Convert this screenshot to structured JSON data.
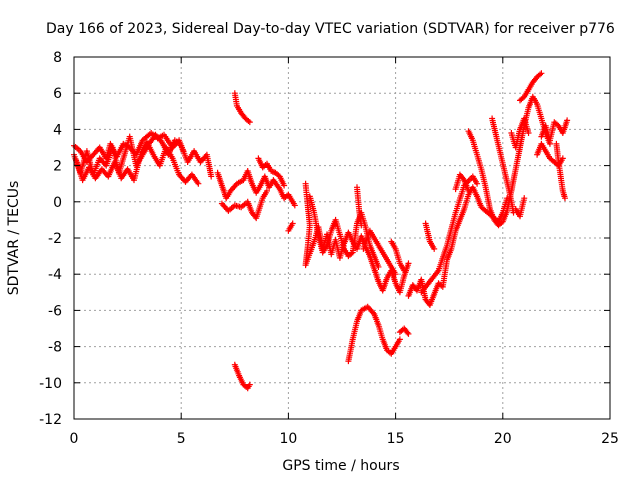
{
  "chart_data": {
    "type": "scatter",
    "title": "Day 166 of 2023, Sidereal Day-to-day VTEC variation (SDTVAR) for receiver p776",
    "xlabel": "GPS time / hours",
    "ylabel": "SDTVAR / TECUs",
    "xlim": [
      0,
      25
    ],
    "ylim": [
      -12,
      8
    ],
    "xticks": [
      0,
      5,
      10,
      15,
      20,
      25
    ],
    "yticks": [
      -12,
      -10,
      -8,
      -6,
      -4,
      -2,
      0,
      2,
      4,
      6,
      8
    ],
    "grid": true,
    "marker": "+",
    "color": "#ff0000",
    "series": [
      {
        "name": "SDTVAR",
        "segments": [
          [
            [
              0.0,
              2.6
            ],
            [
              0.3,
              1.6
            ],
            [
              0.6,
              2.8
            ],
            [
              0.9,
              1.5
            ],
            [
              1.2,
              2.4
            ],
            [
              1.5,
              2.0
            ],
            [
              1.8,
              3.0
            ],
            [
              2.1,
              1.6
            ],
            [
              2.4,
              2.8
            ],
            [
              2.6,
              3.6
            ],
            [
              2.9,
              2.0
            ],
            [
              3.2,
              2.6
            ],
            [
              3.5,
              3.2
            ],
            [
              3.8,
              3.7
            ],
            [
              4.1,
              3.3
            ],
            [
              4.4,
              2.6
            ],
            [
              4.7,
              3.4
            ],
            [
              5.0,
              3.1
            ],
            [
              5.3,
              2.2
            ],
            [
              5.6,
              2.8
            ],
            [
              5.9,
              2.2
            ],
            [
              6.2,
              2.6
            ],
            [
              6.4,
              1.4
            ]
          ],
          [
            [
              0.1,
              2.3
            ],
            [
              0.4,
              1.2
            ],
            [
              0.7,
              1.9
            ],
            [
              1.0,
              1.3
            ],
            [
              1.3,
              1.8
            ],
            [
              1.6,
              1.4
            ],
            [
              1.9,
              2.2
            ],
            [
              2.2,
              1.3
            ],
            [
              2.5,
              1.8
            ],
            [
              2.8,
              1.2
            ],
            [
              3.1,
              2.6
            ],
            [
              3.4,
              3.3
            ],
            [
              3.7,
              2.6
            ],
            [
              4.0,
              2.0
            ],
            [
              4.3,
              3.0
            ],
            [
              4.6,
              2.4
            ],
            [
              4.9,
              1.5
            ],
            [
              5.2,
              1.1
            ],
            [
              5.5,
              1.5
            ],
            [
              5.8,
              1.0
            ]
          ],
          [
            [
              0.0,
              3.1
            ],
            [
              0.3,
              2.8
            ],
            [
              0.6,
              2.2
            ],
            [
              0.9,
              2.6
            ],
            [
              1.2,
              3.0
            ],
            [
              1.5,
              2.4
            ],
            [
              1.7,
              3.2
            ],
            [
              2.0,
              2.5
            ],
            [
              2.3,
              3.2
            ],
            [
              2.6,
              3.0
            ],
            [
              2.9,
              2.6
            ],
            [
              3.2,
              3.4
            ],
            [
              3.6,
              3.8
            ],
            [
              3.9,
              3.5
            ],
            [
              4.2,
              3.7
            ],
            [
              4.6,
              3.0
            ],
            [
              4.9,
              3.4
            ],
            [
              5.1,
              2.8
            ]
          ],
          [
            [
              6.7,
              1.6
            ],
            [
              6.9,
              0.9
            ],
            [
              7.1,
              0.2
            ],
            [
              7.3,
              0.6
            ],
            [
              7.6,
              1.0
            ],
            [
              7.9,
              1.2
            ],
            [
              8.1,
              1.7
            ],
            [
              8.3,
              1.0
            ],
            [
              8.5,
              0.5
            ],
            [
              8.7,
              0.9
            ],
            [
              8.9,
              1.4
            ],
            [
              9.1,
              0.8
            ],
            [
              9.3,
              1.2
            ],
            [
              9.6,
              0.7
            ],
            [
              9.8,
              0.2
            ],
            [
              10.0,
              0.4
            ],
            [
              10.3,
              -0.2
            ]
          ],
          [
            [
              6.9,
              -0.1
            ],
            [
              7.2,
              -0.5
            ],
            [
              7.5,
              -0.2
            ],
            [
              7.8,
              -0.3
            ],
            [
              8.1,
              0.0
            ],
            [
              8.3,
              -0.6
            ],
            [
              8.5,
              -0.9
            ],
            [
              8.8,
              0.2
            ],
            [
              9.0,
              0.6
            ]
          ],
          [
            [
              8.6,
              2.4
            ],
            [
              8.8,
              1.9
            ],
            [
              9.0,
              2.1
            ],
            [
              9.2,
              1.7
            ],
            [
              9.4,
              1.6
            ],
            [
              9.6,
              1.4
            ],
            [
              9.8,
              0.9
            ]
          ],
          [
            [
              7.5,
              6.0
            ],
            [
              7.6,
              5.3
            ],
            [
              7.8,
              4.9
            ],
            [
              8.0,
              4.6
            ],
            [
              8.2,
              4.4
            ]
          ],
          [
            [
              7.5,
              -9.0
            ],
            [
              7.7,
              -9.6
            ],
            [
              7.9,
              -10.1
            ],
            [
              8.1,
              -10.3
            ],
            [
              8.2,
              -10.1
            ]
          ],
          [
            [
              10.0,
              -1.6
            ],
            [
              10.2,
              -1.2
            ]
          ],
          [
            [
              10.8,
              1.0
            ],
            [
              10.9,
              -0.2
            ],
            [
              11.0,
              -1.3
            ],
            [
              10.9,
              -2.5
            ],
            [
              10.8,
              -3.5
            ],
            [
              11.2,
              -2.2
            ],
            [
              11.4,
              -1.4
            ],
            [
              11.6,
              -2.6
            ],
            [
              11.8,
              -1.8
            ],
            [
              12.0,
              -2.9
            ],
            [
              12.2,
              -2.1
            ],
            [
              12.4,
              -3.1
            ],
            [
              12.6,
              -2.3
            ],
            [
              12.8,
              -1.7
            ],
            [
              13.0,
              -2.2
            ],
            [
              13.2,
              -2.6
            ],
            [
              13.4,
              -1.9
            ],
            [
              13.6,
              -2.5
            ],
            [
              13.8,
              -3.0
            ],
            [
              14.0,
              -3.7
            ],
            [
              14.2,
              -4.4
            ],
            [
              14.4,
              -4.9
            ],
            [
              14.6,
              -4.2
            ],
            [
              14.8,
              -3.8
            ],
            [
              15.0,
              -4.5
            ],
            [
              15.2,
              -5.0
            ],
            [
              15.4,
              -4.1
            ],
            [
              15.6,
              -3.4
            ]
          ],
          [
            [
              11.0,
              0.3
            ],
            [
              11.2,
              -0.6
            ],
            [
              11.4,
              -1.9
            ],
            [
              11.6,
              -2.8
            ],
            [
              11.8,
              -2.4
            ],
            [
              12.0,
              -1.6
            ],
            [
              12.2,
              -1.0
            ],
            [
              12.4,
              -1.8
            ],
            [
              12.6,
              -2.6
            ],
            [
              12.8,
              -3.0
            ],
            [
              13.0,
              -2.8
            ],
            [
              13.2,
              -1.2
            ],
            [
              13.4,
              -0.6
            ],
            [
              13.6,
              -1.4
            ],
            [
              13.8,
              -2.4
            ],
            [
              14.0,
              -3.0
            ],
            [
              14.2,
              -3.6
            ]
          ],
          [
            [
              13.5,
              -2.6
            ],
            [
              13.8,
              -1.6
            ],
            [
              14.1,
              -2.2
            ],
            [
              14.4,
              -2.8
            ],
            [
              14.7,
              -3.4
            ],
            [
              15.0,
              -4.0
            ]
          ],
          [
            [
              14.8,
              -2.2
            ],
            [
              15.0,
              -2.6
            ],
            [
              15.2,
              -3.4
            ],
            [
              15.4,
              -3.8
            ]
          ],
          [
            [
              13.2,
              0.8
            ],
            [
              13.3,
              -0.5
            ],
            [
              13.4,
              -1.3
            ]
          ],
          [
            [
              12.8,
              -8.8
            ],
            [
              13.0,
              -7.6
            ],
            [
              13.2,
              -6.6
            ],
            [
              13.4,
              -6.0
            ],
            [
              13.7,
              -5.8
            ],
            [
              14.0,
              -6.2
            ],
            [
              14.2,
              -6.8
            ],
            [
              14.4,
              -7.6
            ],
            [
              14.6,
              -8.2
            ],
            [
              14.8,
              -8.4
            ],
            [
              15.0,
              -8.0
            ],
            [
              15.2,
              -7.6
            ]
          ],
          [
            [
              15.2,
              -7.2
            ],
            [
              15.4,
              -7.0
            ],
            [
              15.6,
              -7.3
            ]
          ],
          [
            [
              15.6,
              -5.2
            ],
            [
              15.8,
              -4.6
            ],
            [
              16.0,
              -4.9
            ],
            [
              16.2,
              -4.3
            ],
            [
              16.4,
              -5.4
            ],
            [
              16.6,
              -5.7
            ],
            [
              16.8,
              -5.1
            ],
            [
              17.0,
              -4.5
            ],
            [
              17.2,
              -4.7
            ],
            [
              17.4,
              -3.2
            ],
            [
              17.6,
              -2.6
            ],
            [
              17.8,
              -1.6
            ],
            [
              18.0,
              -1.0
            ],
            [
              18.2,
              -0.4
            ],
            [
              18.4,
              0.4
            ],
            [
              18.6,
              0.8
            ],
            [
              18.8,
              0.3
            ],
            [
              19.0,
              -0.3
            ],
            [
              19.2,
              -0.5
            ],
            [
              19.4,
              -0.7
            ],
            [
              19.6,
              -0.9
            ],
            [
              19.8,
              -1.1
            ],
            [
              20.0,
              -0.6
            ],
            [
              20.2,
              0.2
            ]
          ],
          [
            [
              16.2,
              -5.0
            ],
            [
              16.6,
              -4.4
            ],
            [
              17.0,
              -3.8
            ],
            [
              17.4,
              -2.4
            ],
            [
              17.8,
              -0.6
            ],
            [
              18.2,
              0.9
            ],
            [
              18.6,
              1.4
            ],
            [
              18.8,
              1.0
            ]
          ],
          [
            [
              17.8,
              0.7
            ],
            [
              18.0,
              1.5
            ],
            [
              18.2,
              1.2
            ],
            [
              18.4,
              0.6
            ]
          ],
          [
            [
              16.4,
              -1.2
            ],
            [
              16.6,
              -2.2
            ],
            [
              16.8,
              -2.6
            ]
          ],
          [
            [
              18.4,
              3.9
            ],
            [
              18.6,
              3.4
            ],
            [
              18.8,
              2.6
            ],
            [
              19.0,
              1.8
            ],
            [
              19.2,
              0.8
            ],
            [
              19.4,
              -0.4
            ],
            [
              19.6,
              -1.0
            ],
            [
              19.8,
              -1.3
            ],
            [
              20.0,
              -1.1
            ],
            [
              20.2,
              -0.5
            ],
            [
              20.4,
              0.6
            ],
            [
              20.6,
              1.8
            ],
            [
              20.8,
              3.0
            ],
            [
              21.0,
              4.2
            ],
            [
              21.2,
              5.2
            ],
            [
              21.4,
              5.8
            ],
            [
              21.6,
              5.4
            ],
            [
              21.8,
              4.6
            ],
            [
              22.0,
              3.8
            ],
            [
              22.2,
              3.2
            ]
          ],
          [
            [
              19.5,
              4.6
            ],
            [
              19.7,
              3.6
            ],
            [
              19.9,
              2.6
            ],
            [
              20.1,
              1.6
            ],
            [
              20.3,
              0.6
            ],
            [
              20.5,
              -0.6
            ]
          ],
          [
            [
              20.4,
              3.8
            ],
            [
              20.6,
              3.0
            ],
            [
              20.8,
              4.0
            ],
            [
              21.0,
              4.6
            ],
            [
              21.2,
              3.8
            ]
          ],
          [
            [
              20.8,
              5.6
            ],
            [
              21.0,
              5.8
            ],
            [
              21.2,
              6.2
            ],
            [
              21.4,
              6.6
            ],
            [
              21.6,
              6.9
            ],
            [
              21.8,
              7.1
            ]
          ],
          [
            [
              21.8,
              3.6
            ],
            [
              22.0,
              4.2
            ],
            [
              22.2,
              3.4
            ],
            [
              22.4,
              4.4
            ],
            [
              22.6,
              4.2
            ],
            [
              22.8,
              3.8
            ],
            [
              23.0,
              4.5
            ]
          ],
          [
            [
              21.6,
              2.6
            ],
            [
              21.8,
              3.2
            ],
            [
              22.0,
              2.8
            ],
            [
              22.2,
              2.4
            ],
            [
              22.4,
              2.2
            ],
            [
              22.6,
              2.0
            ],
            [
              22.8,
              2.4
            ]
          ],
          [
            [
              22.5,
              3.2
            ],
            [
              22.6,
              2.2
            ],
            [
              22.7,
              1.4
            ],
            [
              22.8,
              0.6
            ],
            [
              22.9,
              0.2
            ]
          ],
          [
            [
              20.6,
              -0.4
            ],
            [
              20.8,
              -0.8
            ],
            [
              21.0,
              0.2
            ]
          ]
        ]
      }
    ]
  }
}
